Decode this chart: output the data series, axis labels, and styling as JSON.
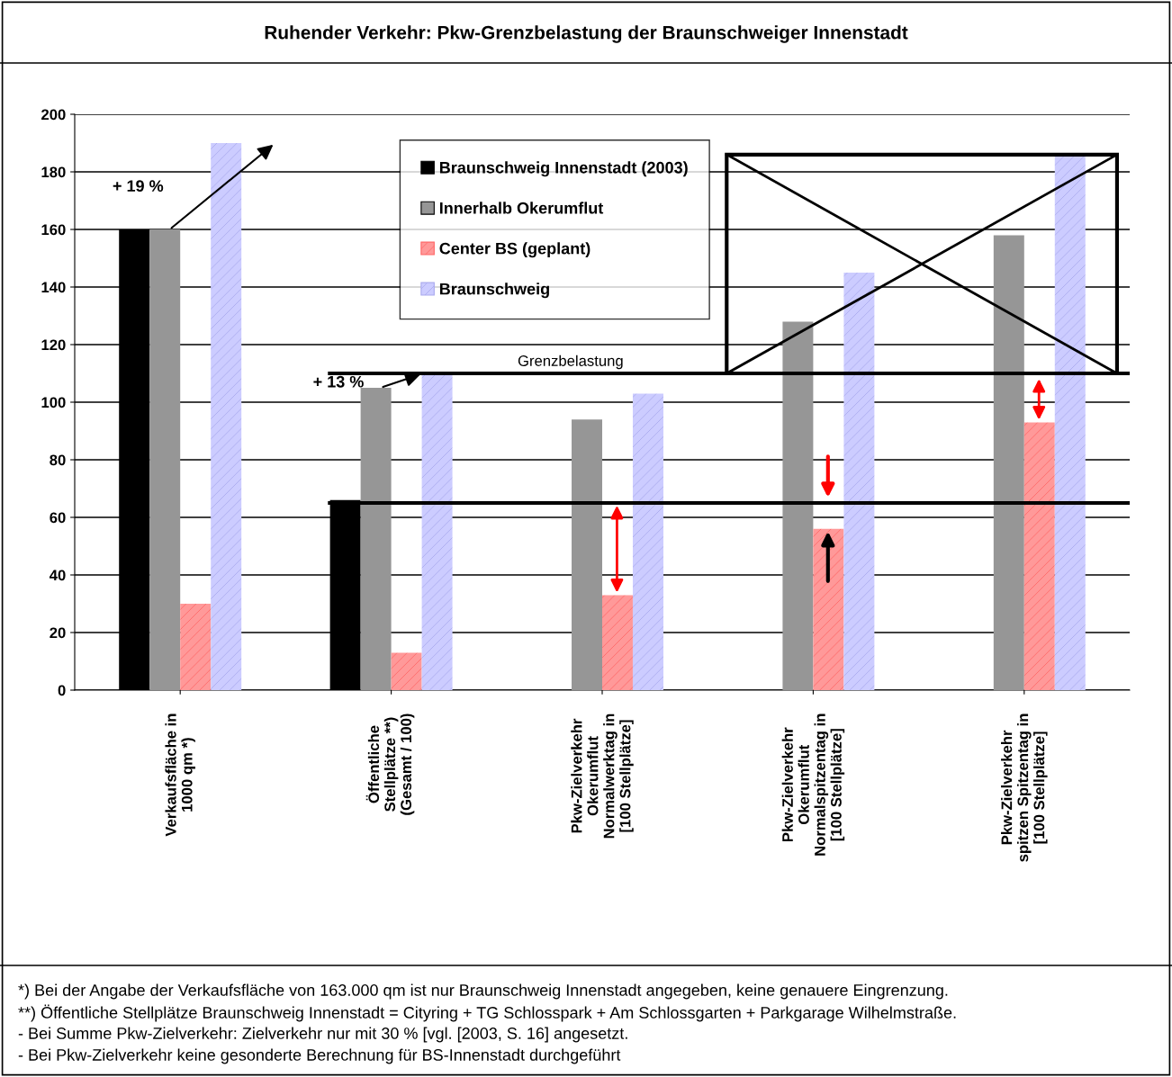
{
  "chart_data": {
    "type": "bar",
    "title": "Ruhender Verkehr: Pkw-Grenzbelastung der Braunschweiger Innenstadt",
    "categories": [
      "Verkaufsfläche in\n1000 qm *)",
      "Öffentliche\nStellplätze **)\n(Gesamt / 100)",
      "Pkw-Zielverkehr\nOkerumflut\nNormalwerktag in\n[100 Stellplätze]",
      "Pkw-Zielverkehr\nOkerumflut\nNormalspitzentag in\n[100 Stellplätze]",
      "Pkw-Zielverkehr\nspitzen Spitzentag in\n[100 Stellplätze]"
    ],
    "series": [
      {
        "name": "Braunschweig Innenstadt (2003)",
        "color": "#000000",
        "values": [
          160,
          66,
          null,
          null,
          null
        ]
      },
      {
        "name": "Innerhalb Okerumflut",
        "color": "#969696",
        "values": [
          160,
          105,
          94,
          128,
          158
        ]
      },
      {
        "name": "Center BS (geplant)",
        "color": "#ff9999",
        "values": [
          30,
          13,
          33,
          56,
          93
        ]
      },
      {
        "name": "Braunschweig",
        "color": "#ccccff",
        "values": [
          190,
          110,
          103,
          145,
          186
        ]
      }
    ],
    "ylim": [
      0,
      200
    ],
    "yticks": [
      0,
      20,
      40,
      60,
      80,
      100,
      120,
      140,
      160,
      180,
      200
    ],
    "grid": "y",
    "legend": "top",
    "ref_lines": [
      {
        "axis": "y",
        "value": 110,
        "label": "Grenzbelastung",
        "color": "#000000"
      },
      {
        "axis": "y",
        "value": 65,
        "label": null,
        "color": "#000000"
      }
    ],
    "annotations": [
      "+ 19 %",
      "+ 13 %",
      "*) Bei der Angabe der Verkaufsfläche von 163.000 qm ist nur Braunschweig Innenstadt angegeben, keine genauere Eingrenzung.",
      "**) Öffentliche Stellplätze Braunschweig Innenstadt = Cityring + TG Schlosspark + Am Schlossgarten + Parkgarage Wilhelmstraße.",
      "- Bei Summe Pkw-Zielverkehr: Zielverkehr nur mit 30 % [vgl. [2003, S. 16] angesetzt.",
      "- Bei Pkw-Zielverkehr keine gesonderte Berechnung für BS-Innenstadt durchgeführt"
    ]
  }
}
